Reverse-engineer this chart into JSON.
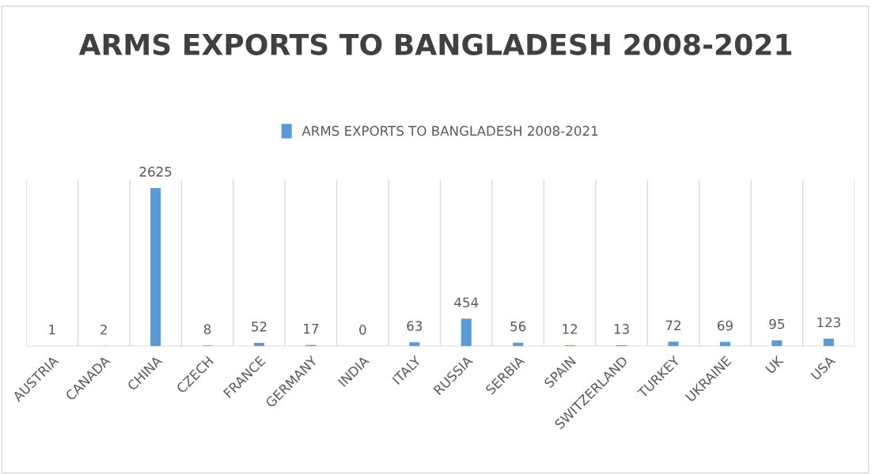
{
  "chart_data": {
    "type": "bar",
    "title": "ARMS EXPORTS TO BANGLADESH 2008-2021",
    "categories": [
      "AUSTRIA",
      "CANADA",
      "CHINA",
      "CZECH",
      "FRANCE",
      "GERMANY",
      "INDIA",
      "ITALY",
      "RUSSIA",
      "SERBIA",
      "SPAIN",
      "SWITZERLAND",
      "TURKEY",
      "UKRAINE",
      "UK",
      "USA"
    ],
    "series": [
      {
        "name": "ARMS EXPORTS TO BANGLADESH 2008-2021",
        "color": "#5b9bd5",
        "values": [
          1,
          2,
          2625,
          8,
          52,
          17,
          0,
          63,
          454,
          56,
          12,
          13,
          72,
          69,
          95,
          123
        ]
      }
    ],
    "data_labels": true,
    "grid": "x",
    "legend": "top",
    "tick_labels": "x"
  }
}
